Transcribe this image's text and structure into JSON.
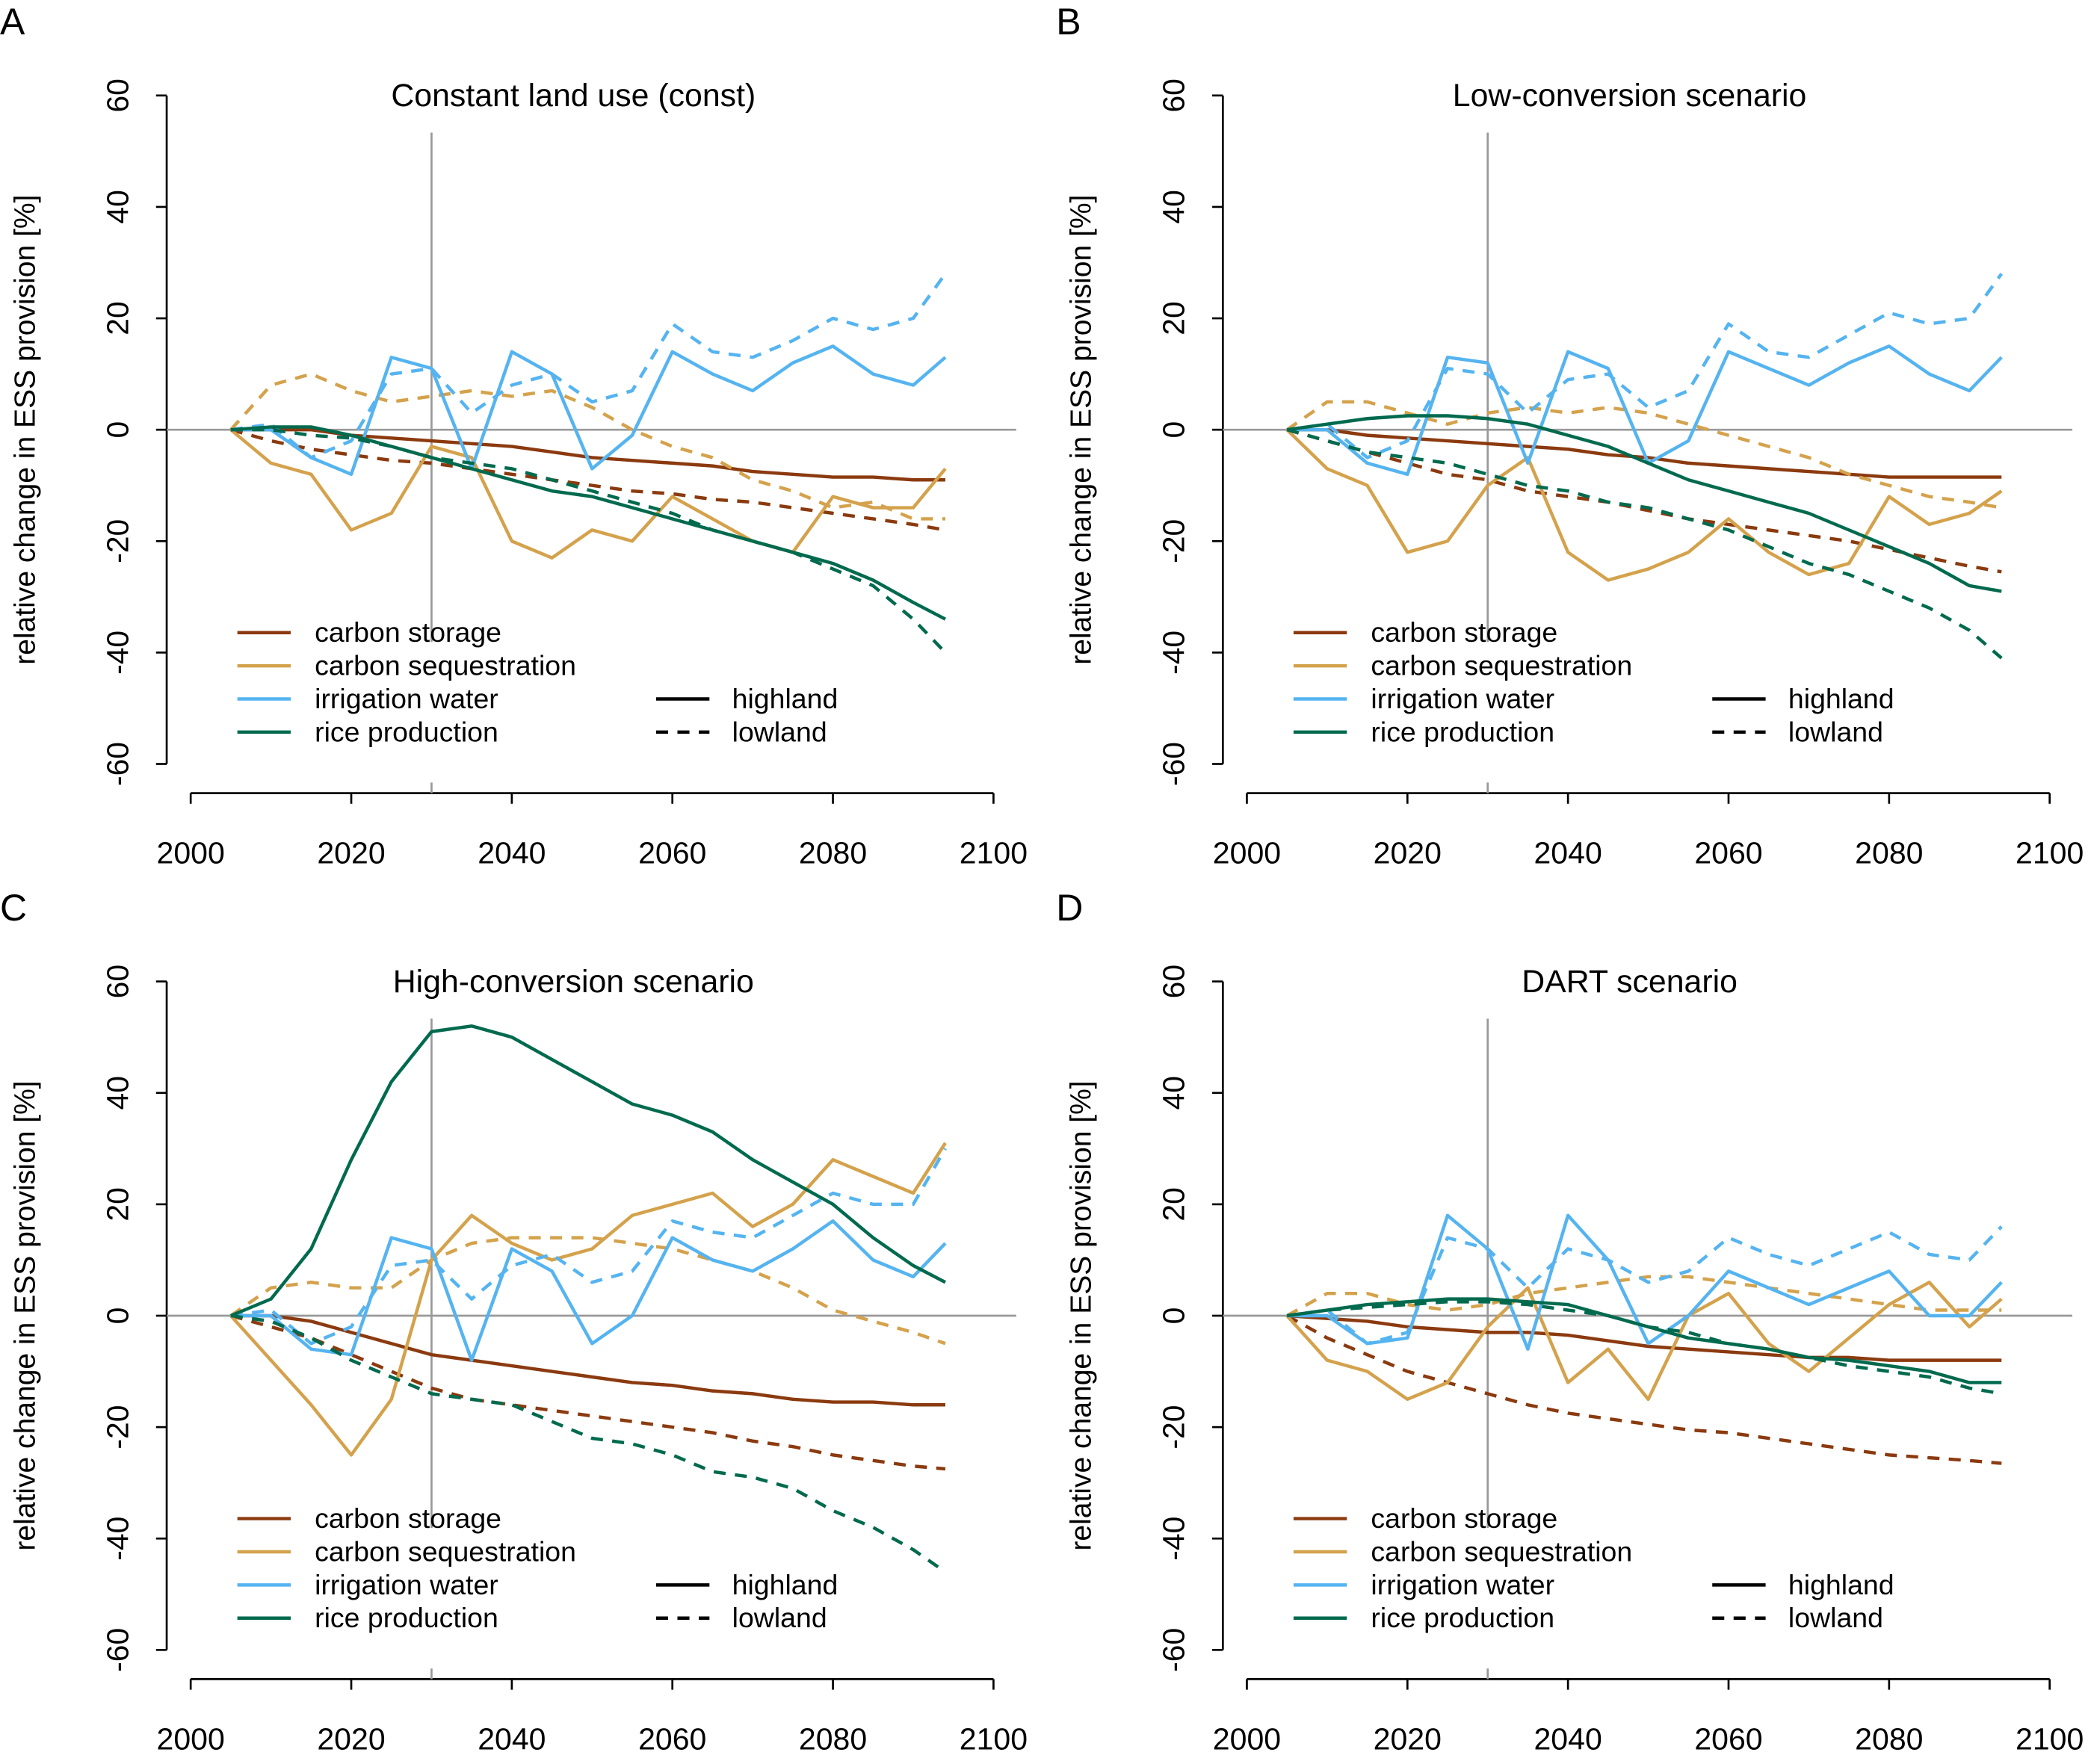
{
  "colors": {
    "carbon storage": "#8B3A0F",
    "carbon sequestration": "#D4A24C",
    "irrigation water": "#55B4F0",
    "rice production": "#006A4E"
  },
  "legend": {
    "services": [
      "carbon storage",
      "carbon sequestration",
      "irrigation water",
      "rice production"
    ],
    "line_types": [
      {
        "label": "highland",
        "style": "solid"
      },
      {
        "label": "lowland",
        "style": "dashed"
      }
    ]
  },
  "chart_data": [
    {
      "panel": "A",
      "type": "line",
      "title": "Constant land use (const)",
      "ylabel": "relative change in ESS provision [%]",
      "xlabel": "",
      "xlim": [
        2000,
        2100
      ],
      "ylim": [
        -60,
        60
      ],
      "xticks": [
        "2000",
        "2020",
        "2040",
        "2060",
        "2080",
        "2100"
      ],
      "yticks": [
        "-60",
        "-40",
        "-20",
        "0",
        "20",
        "40",
        "60"
      ],
      "reference_lines": {
        "x": 2030,
        "y": 0
      },
      "x": [
        2005,
        2010,
        2015,
        2020,
        2025,
        2030,
        2035,
        2040,
        2045,
        2050,
        2055,
        2060,
        2065,
        2070,
        2075,
        2080,
        2085,
        2090,
        2094
      ],
      "series": [
        {
          "name": "carbon storage",
          "region": "highland",
          "values": [
            0,
            0,
            0,
            -1,
            -1.5,
            -2,
            -2.5,
            -3,
            -4,
            -5,
            -5.5,
            -6,
            -6.5,
            -7.5,
            -8,
            -8.5,
            -8.5,
            -9,
            -9
          ]
        },
        {
          "name": "carbon storage",
          "region": "lowland",
          "values": [
            0,
            -2,
            -3.5,
            -4.5,
            -5.5,
            -6,
            -7,
            -8,
            -9,
            -10,
            -11,
            -11.5,
            -12.5,
            -13,
            -14,
            -15,
            -16,
            -17,
            -18
          ]
        },
        {
          "name": "carbon sequestration",
          "region": "highland",
          "values": [
            0,
            -6,
            -8,
            -18,
            -15,
            -3,
            -5,
            -20,
            -23,
            -18,
            -20,
            -12,
            -16,
            -20,
            -22,
            -12,
            -14,
            -14,
            -7
          ]
        },
        {
          "name": "carbon sequestration",
          "region": "lowland",
          "values": [
            0,
            8,
            10,
            7,
            5,
            6,
            7,
            6,
            7,
            4,
            0,
            -3,
            -5,
            -9,
            -11,
            -14,
            -13,
            -16,
            -16
          ]
        },
        {
          "name": "irrigation water",
          "region": "highland",
          "values": [
            0,
            0,
            -5,
            -8,
            13,
            11,
            -7,
            14,
            10,
            -7,
            -1,
            14,
            10,
            7,
            12,
            15,
            10,
            8,
            13
          ]
        },
        {
          "name": "irrigation water",
          "region": "lowland",
          "values": [
            0,
            1,
            -5,
            -2,
            10,
            11,
            3,
            8,
            10,
            5,
            7,
            19,
            14,
            13,
            16,
            20,
            18,
            20,
            28
          ]
        },
        {
          "name": "rice production",
          "region": "highland",
          "values": [
            0,
            0.5,
            0.5,
            -1,
            -3,
            -5,
            -7,
            -9,
            -11,
            -12,
            -14,
            -16,
            -18,
            -20,
            -22,
            -24,
            -27,
            -31,
            -34
          ]
        },
        {
          "name": "rice production",
          "region": "lowland",
          "values": [
            0,
            0,
            -1,
            -1.5,
            -3,
            -5,
            -6,
            -7,
            -9,
            -11,
            -13,
            -15,
            -18,
            -20,
            -22,
            -25,
            -28,
            -34,
            -40
          ]
        }
      ]
    },
    {
      "panel": "B",
      "type": "line",
      "title": "Low-conversion scenario",
      "ylabel": "relative change in ESS provision [%]",
      "xlabel": "",
      "xlim": [
        2000,
        2100
      ],
      "ylim": [
        -60,
        60
      ],
      "xticks": [
        "2000",
        "2020",
        "2040",
        "2060",
        "2080",
        "2100"
      ],
      "yticks": [
        "-60",
        "-40",
        "-20",
        "0",
        "20",
        "40",
        "60"
      ],
      "reference_lines": {
        "x": 2030,
        "y": 0
      },
      "x": [
        2005,
        2010,
        2015,
        2020,
        2025,
        2030,
        2035,
        2040,
        2045,
        2050,
        2055,
        2060,
        2065,
        2070,
        2075,
        2080,
        2085,
        2090,
        2094
      ],
      "series": [
        {
          "name": "carbon storage",
          "region": "highland",
          "values": [
            0,
            0,
            -1,
            -1.5,
            -2,
            -2.5,
            -3,
            -3.5,
            -4.5,
            -5,
            -6,
            -6.5,
            -7,
            -7.5,
            -8,
            -8.5,
            -8.5,
            -8.5,
            -8.5
          ]
        },
        {
          "name": "carbon storage",
          "region": "lowland",
          "values": [
            0,
            -2,
            -4,
            -6,
            -8,
            -9,
            -11,
            -12,
            -13,
            -14.5,
            -16,
            -17,
            -18,
            -19,
            -20,
            -21.5,
            -23,
            -24.5,
            -25.5
          ]
        },
        {
          "name": "carbon sequestration",
          "region": "highland",
          "values": [
            0,
            -7,
            -10,
            -22,
            -20,
            -10,
            -5,
            -22,
            -27,
            -25,
            -22,
            -16,
            -22,
            -26,
            -24,
            -12,
            -17,
            -15,
            -11
          ]
        },
        {
          "name": "carbon sequestration",
          "region": "lowland",
          "values": [
            0,
            5,
            5,
            3,
            1,
            3,
            4,
            3,
            4,
            3,
            1,
            -1,
            -3,
            -5,
            -8,
            -10,
            -12,
            -13,
            -14
          ]
        },
        {
          "name": "irrigation water",
          "region": "highland",
          "values": [
            0,
            0,
            -6,
            -8,
            13,
            12,
            -6,
            14,
            11,
            -6,
            -2,
            14,
            11,
            8,
            12,
            15,
            10,
            7,
            13
          ]
        },
        {
          "name": "irrigation water",
          "region": "lowland",
          "values": [
            0,
            1,
            -5,
            -2,
            11,
            10,
            3,
            9,
            10,
            4,
            7,
            19,
            14,
            13,
            17,
            21,
            19,
            20,
            28
          ]
        },
        {
          "name": "rice production",
          "region": "highland",
          "values": [
            0,
            1,
            2,
            2.5,
            2.5,
            2,
            1,
            -1,
            -3,
            -6,
            -9,
            -11,
            -13,
            -15,
            -18,
            -21,
            -24,
            -28,
            -29
          ]
        },
        {
          "name": "rice production",
          "region": "lowland",
          "values": [
            0,
            -2,
            -4,
            -5,
            -6,
            -8,
            -10,
            -11,
            -13,
            -14,
            -16,
            -18,
            -21,
            -24,
            -26,
            -29,
            -32,
            -36,
            -41
          ]
        }
      ]
    },
    {
      "panel": "C",
      "type": "line",
      "title": "High-conversion scenario",
      "ylabel": "relative change in ESS provision [%]",
      "xlabel": "",
      "xlim": [
        2000,
        2100
      ],
      "ylim": [
        -60,
        60
      ],
      "xticks": [
        "2000",
        "2020",
        "2040",
        "2060",
        "2080",
        "2100"
      ],
      "yticks": [
        "-60",
        "-40",
        "-20",
        "0",
        "20",
        "40",
        "60"
      ],
      "reference_lines": {
        "x": 2030,
        "y": 0
      },
      "x": [
        2005,
        2010,
        2015,
        2020,
        2025,
        2030,
        2035,
        2040,
        2045,
        2050,
        2055,
        2060,
        2065,
        2070,
        2075,
        2080,
        2085,
        2090,
        2094
      ],
      "series": [
        {
          "name": "carbon storage",
          "region": "highland",
          "values": [
            0,
            0,
            -1,
            -3,
            -5,
            -7,
            -8,
            -9,
            -10,
            -11,
            -12,
            -12.5,
            -13.5,
            -14,
            -15,
            -15.5,
            -15.5,
            -16,
            -16
          ]
        },
        {
          "name": "carbon storage",
          "region": "lowland",
          "values": [
            0,
            -2,
            -4,
            -7,
            -10,
            -13,
            -15,
            -16,
            -17,
            -18,
            -19,
            -20,
            -21,
            -22.5,
            -23.5,
            -25,
            -26,
            -27,
            -27.5
          ]
        },
        {
          "name": "carbon sequestration",
          "region": "highland",
          "values": [
            0,
            -8,
            -16,
            -25,
            -15,
            10,
            18,
            13,
            10,
            12,
            18,
            20,
            22,
            16,
            20,
            28,
            25,
            22,
            31
          ]
        },
        {
          "name": "carbon sequestration",
          "region": "lowland",
          "values": [
            0,
            5,
            6,
            5,
            5,
            10,
            13,
            14,
            14,
            14,
            13,
            12,
            10,
            8,
            5,
            1,
            -1,
            -3,
            -5
          ]
        },
        {
          "name": "irrigation water",
          "region": "highland",
          "values": [
            0,
            0,
            -6,
            -7,
            14,
            12,
            -8,
            12,
            8,
            -5,
            0,
            14,
            10,
            8,
            12,
            17,
            10,
            7,
            13
          ]
        },
        {
          "name": "irrigation water",
          "region": "lowland",
          "values": [
            0,
            1,
            -5,
            -2,
            9,
            10,
            3,
            9,
            11,
            6,
            8,
            17,
            15,
            14,
            18,
            22,
            20,
            20,
            30
          ]
        },
        {
          "name": "rice production",
          "region": "highland",
          "values": [
            0,
            3,
            12,
            28,
            42,
            51,
            52,
            50,
            46,
            42,
            38,
            36,
            33,
            28,
            24,
            20,
            14,
            9,
            6
          ]
        },
        {
          "name": "rice production",
          "region": "lowland",
          "values": [
            0,
            -1,
            -4,
            -8,
            -11,
            -14,
            -15,
            -16,
            -19,
            -22,
            -23,
            -25,
            -28,
            -29,
            -31,
            -35,
            -38,
            -42,
            -46
          ]
        }
      ]
    },
    {
      "panel": "D",
      "type": "line",
      "title": "DART scenario",
      "ylabel": "relative change in ESS provision [%]",
      "xlabel": "",
      "xlim": [
        2000,
        2100
      ],
      "ylim": [
        -60,
        60
      ],
      "xticks": [
        "2000",
        "2020",
        "2040",
        "2060",
        "2080",
        "2100"
      ],
      "yticks": [
        "-60",
        "-40",
        "-20",
        "0",
        "20",
        "40",
        "60"
      ],
      "reference_lines": {
        "x": 2030,
        "y": 0
      },
      "x": [
        2005,
        2010,
        2015,
        2020,
        2025,
        2030,
        2035,
        2040,
        2045,
        2050,
        2055,
        2060,
        2065,
        2070,
        2075,
        2080,
        2085,
        2090,
        2094
      ],
      "series": [
        {
          "name": "carbon storage",
          "region": "highland",
          "values": [
            0,
            -0.5,
            -1,
            -2,
            -2.5,
            -3,
            -3,
            -3.5,
            -4.5,
            -5.5,
            -6,
            -6.5,
            -7,
            -7.5,
            -7.5,
            -8,
            -8,
            -8,
            -8
          ]
        },
        {
          "name": "carbon storage",
          "region": "lowland",
          "values": [
            0,
            -4,
            -7,
            -10,
            -12,
            -14,
            -16,
            -17.5,
            -18.5,
            -19.5,
            -20.5,
            -21,
            -22,
            -23,
            -24,
            -25,
            -25.5,
            -26,
            -26.5
          ]
        },
        {
          "name": "carbon sequestration",
          "region": "highland",
          "values": [
            0,
            -8,
            -10,
            -15,
            -12,
            -2,
            5,
            -12,
            -6,
            -15,
            0,
            4,
            -5,
            -10,
            -4,
            2,
            6,
            -2,
            3
          ]
        },
        {
          "name": "carbon sequestration",
          "region": "lowland",
          "values": [
            0,
            4,
            4,
            2,
            1,
            2,
            4,
            5,
            6,
            7,
            7,
            6,
            5,
            4,
            3,
            2,
            1,
            1,
            1
          ]
        },
        {
          "name": "irrigation water",
          "region": "highland",
          "values": [
            0,
            0,
            -5,
            -4,
            18,
            12,
            -6,
            18,
            10,
            -5,
            0,
            8,
            5,
            2,
            5,
            8,
            0,
            0,
            6
          ]
        },
        {
          "name": "irrigation water",
          "region": "lowland",
          "values": [
            0,
            1,
            -5,
            -3,
            14,
            12,
            5,
            12,
            10,
            6,
            8,
            14,
            11,
            9,
            12,
            15,
            11,
            10,
            16
          ]
        },
        {
          "name": "rice production",
          "region": "highland",
          "values": [
            0,
            1,
            2,
            2.5,
            3,
            3,
            2.5,
            2,
            0,
            -2,
            -4,
            -5,
            -6,
            -7.5,
            -8,
            -9,
            -10,
            -12,
            -12
          ]
        },
        {
          "name": "rice production",
          "region": "lowland",
          "values": [
            0,
            1,
            1.5,
            2,
            2.5,
            2.5,
            2,
            1,
            0,
            -2,
            -3,
            -5,
            -6,
            -7.5,
            -9,
            -10,
            -11,
            -13,
            -14
          ]
        }
      ]
    }
  ]
}
